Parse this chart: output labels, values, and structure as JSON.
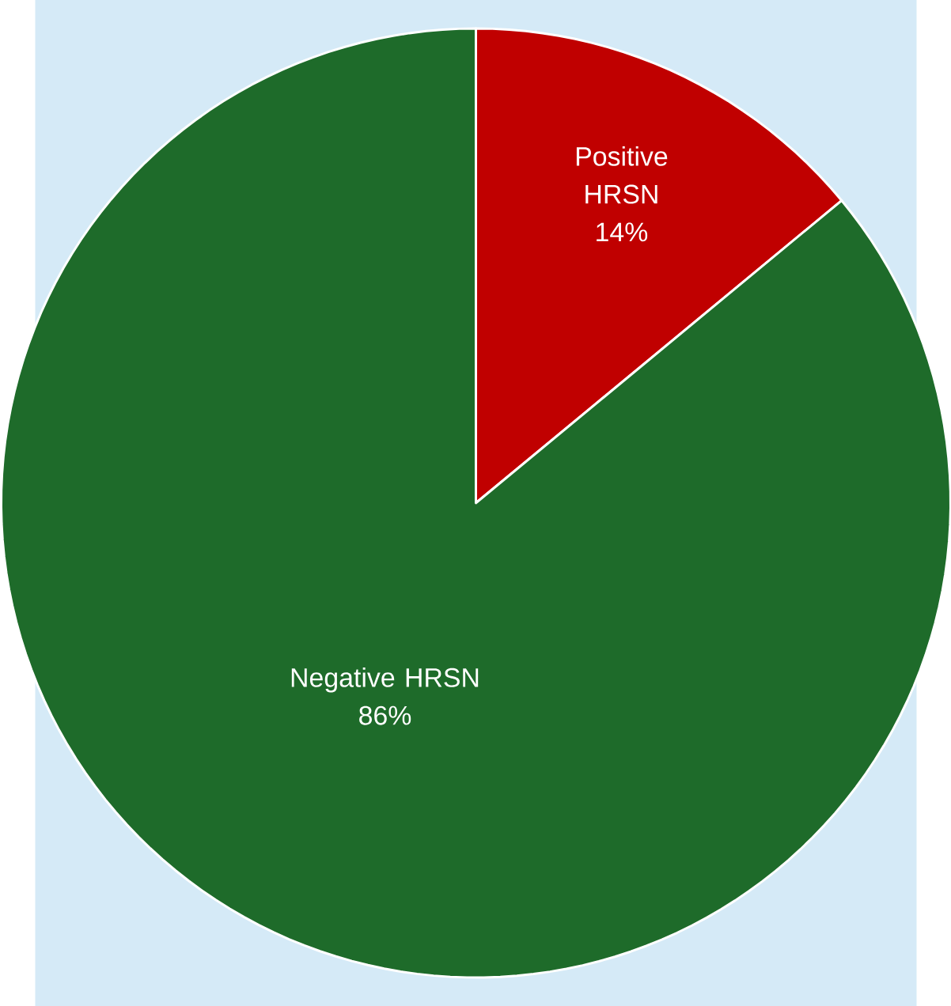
{
  "chart_data": {
    "type": "pie",
    "categories": [
      "Positive HRSN",
      "Negative HRSN"
    ],
    "values": [
      14,
      86
    ],
    "value_labels": [
      "14%",
      "86%"
    ],
    "colors": [
      "#c00000",
      "#1e6b2a"
    ]
  }
}
